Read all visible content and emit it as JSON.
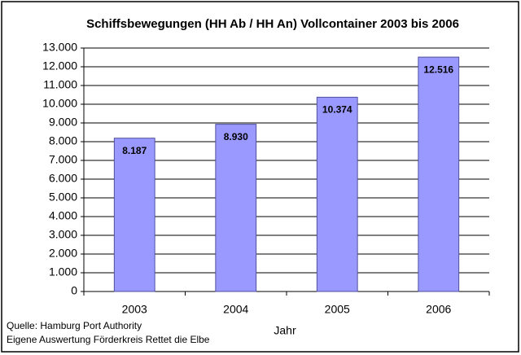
{
  "chart_data": {
    "type": "bar",
    "title": "Schiffsbewegungen (HH Ab / HH An) Vollcontainer  2003 bis 2006",
    "categories": [
      "2003",
      "2004",
      "2005",
      "2006"
    ],
    "values": [
      8187,
      8930,
      10374,
      12516
    ],
    "value_labels": [
      "8.187",
      "8.930",
      "10.374",
      "12.516"
    ],
    "color": "#9999ff",
    "x_label": "Jahr",
    "ylim": [
      0,
      13000
    ],
    "yticks": [
      0,
      {
        "value": 1000,
        "label": "1.000"
      },
      {
        "value": 2000,
        "label": "2.000"
      },
      {
        "value": 3000,
        "label": "3.000"
      },
      {
        "value": 4000,
        "label": "4.000"
      },
      {
        "value": 5000,
        "label": "5.000"
      },
      {
        "value": 6000,
        "label": "6.000"
      },
      {
        "value": 7000,
        "label": "7.000"
      },
      {
        "value": 8000,
        "label": "8.000"
      },
      {
        "value": 9000,
        "label": "9.000"
      },
      {
        "value": 10000,
        "label": "10.000"
      },
      {
        "value": 11000,
        "label": "11.000"
      },
      {
        "value": 12000,
        "label": "12.000"
      },
      {
        "value": 13000,
        "label": "13.000"
      }
    ],
    "grid": true,
    "notes": [
      "Quelle: Hamburg Port Authority",
      "Eigene Auswertung Förderkreis Rettet die Elbe"
    ]
  }
}
